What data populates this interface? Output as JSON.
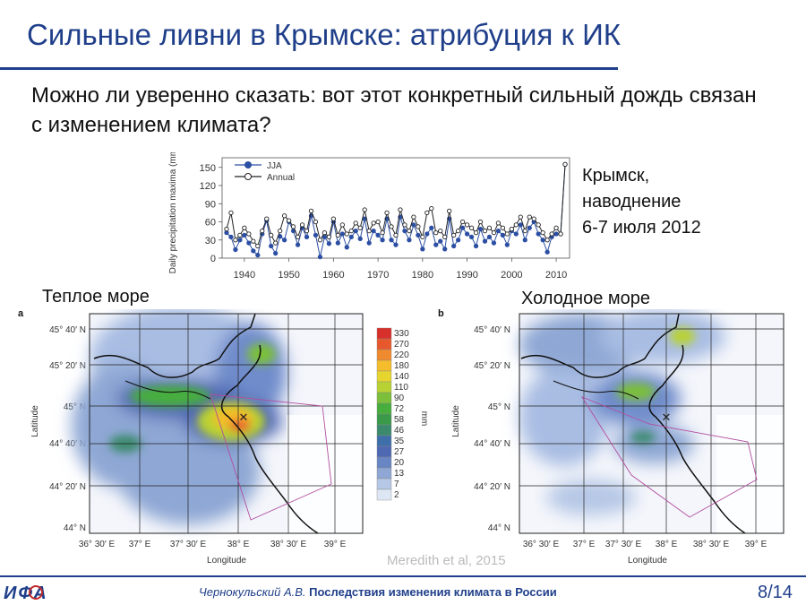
{
  "slide": {
    "title": "Сильные ливни в Крымске: атрибуция к ИК",
    "question": "Можно ли уверенно сказать: вот этот конкретный сильный дождь связан с изменением климата?",
    "annotation": [
      "Крымск,",
      "наводнение",
      "6-7 июля 2012"
    ],
    "credit": "Meredith et al, 2015",
    "footer": {
      "author": "Чернокульский А.В.",
      "course": "Последствия изменения климата в России",
      "page": "8/14",
      "logo_text": "ИФА"
    },
    "colors": {
      "accent": "#1f3f8a",
      "credit": "#bbbbbb"
    }
  },
  "maps": {
    "left": {
      "panel": "a",
      "label": "Теплое море",
      "ylabel": "Latitude",
      "xlabel": "Longitude",
      "lat_ticks": [
        "45° 40′ N",
        "45° 20′ N",
        "45° N",
        "44° 40′ N",
        "44° 20′ N",
        "44° N"
      ],
      "lon_ticks": [
        "36° 30′ E",
        "37° E",
        "37° 30′ E",
        "38° E",
        "38° 30′ E",
        "39° E"
      ]
    },
    "right": {
      "panel": "b",
      "label": "Холодное море",
      "ylabel": "Latitude",
      "xlabel": "Longitude",
      "lat_ticks": [
        "45° 40′ N",
        "45° 20′ N",
        "45° N",
        "44° 40′ N",
        "44° 20′ N",
        "44° N"
      ],
      "lon_ticks": [
        "36° 30′ E",
        "37° E",
        "37° 30′ E",
        "38° E",
        "38° 30′ E",
        "39° E"
      ]
    }
  },
  "colorbar": {
    "unit": "mm",
    "levels": [
      "330",
      "270",
      "220",
      "180",
      "140",
      "110",
      "90",
      "72",
      "58",
      "46",
      "35",
      "27",
      "20",
      "13",
      "7",
      "2"
    ],
    "colors": [
      "#d7302b",
      "#e8582d",
      "#f08a2e",
      "#f5bc2c",
      "#e6d52e",
      "#b9d233",
      "#7cbf3a",
      "#47ae3d",
      "#3a9a4a",
      "#3c8a6e",
      "#3f6faa",
      "#4f68b2",
      "#6885c4",
      "#8ea7d4",
      "#b6c8e6",
      "#dde7f4"
    ]
  },
  "chart_data": {
    "type": "line",
    "ylabel": "Daily precipitation maxima (mm)",
    "xticks": [
      1940,
      1950,
      1960,
      1970,
      1980,
      1990,
      2000,
      2010
    ],
    "yticks": [
      0,
      30,
      60,
      90,
      120,
      150
    ],
    "xlim": [
      1935,
      2013
    ],
    "ylim": [
      0,
      160
    ],
    "x": [
      1936,
      1937,
      1938,
      1939,
      1940,
      1941,
      1942,
      1943,
      1944,
      1945,
      1946,
      1947,
      1948,
      1949,
      1950,
      1951,
      1952,
      1953,
      1954,
      1955,
      1956,
      1957,
      1958,
      1959,
      1960,
      1961,
      1962,
      1963,
      1964,
      1965,
      1966,
      1967,
      1968,
      1969,
      1970,
      1971,
      1972,
      1973,
      1974,
      1975,
      1976,
      1977,
      1978,
      1979,
      1980,
      1981,
      1982,
      1983,
      1984,
      1985,
      1986,
      1987,
      1988,
      1989,
      1990,
      1991,
      1992,
      1993,
      1994,
      1995,
      1996,
      1997,
      1998,
      1999,
      2000,
      2001,
      2002,
      2003,
      2004,
      2005,
      2006,
      2007,
      2008,
      2009,
      2010,
      2011,
      2012
    ],
    "series": [
      {
        "name": "JJA",
        "color": "#2c4fa3",
        "values": [
          42,
          35,
          14,
          30,
          38,
          25,
          12,
          5,
          40,
          62,
          20,
          8,
          36,
          30,
          60,
          45,
          22,
          50,
          35,
          70,
          38,
          2,
          35,
          24,
          60,
          25,
          40,
          18,
          35,
          45,
          32,
          65,
          25,
          45,
          38,
          30,
          65,
          30,
          22,
          68,
          45,
          30,
          55,
          38,
          15,
          40,
          50,
          22,
          28,
          15,
          65,
          20,
          30,
          50,
          40,
          35,
          20,
          48,
          28,
          35,
          25,
          45,
          38,
          22,
          45,
          40,
          55,
          30,
          50,
          60,
          40,
          30,
          10,
          35,
          40,
          40,
          155
        ]
      },
      {
        "name": "Annual",
        "color": "#222222",
        "values": [
          48,
          75,
          30,
          38,
          50,
          40,
          28,
          20,
          45,
          65,
          38,
          25,
          45,
          70,
          62,
          52,
          35,
          55,
          45,
          78,
          60,
          30,
          42,
          35,
          65,
          38,
          55,
          40,
          45,
          58,
          50,
          80,
          45,
          58,
          60,
          42,
          75,
          52,
          38,
          80,
          55,
          45,
          68,
          52,
          35,
          75,
          82,
          42,
          45,
          35,
          78,
          38,
          45,
          60,
          55,
          50,
          42,
          60,
          45,
          50,
          42,
          58,
          50,
          40,
          48,
          55,
          68,
          45,
          68,
          65,
          55,
          42,
          30,
          40,
          50,
          40,
          155
        ]
      }
    ]
  }
}
